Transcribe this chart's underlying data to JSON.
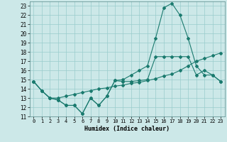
{
  "xlabel": "Humidex (Indice chaleur)",
  "xlim": [
    -0.5,
    23.5
  ],
  "ylim": [
    11,
    23.5
  ],
  "yticks": [
    11,
    12,
    13,
    14,
    15,
    16,
    17,
    18,
    19,
    20,
    21,
    22,
    23
  ],
  "xticks": [
    0,
    1,
    2,
    3,
    4,
    5,
    6,
    7,
    8,
    9,
    10,
    11,
    12,
    13,
    14,
    15,
    16,
    17,
    18,
    19,
    20,
    21,
    22,
    23
  ],
  "bg_color": "#cce8e8",
  "grid_color": "#99cccc",
  "line_color": "#1a7a6e",
  "line1_x": [
    0,
    1,
    2,
    3,
    4,
    5,
    6,
    7,
    8,
    9,
    10,
    11,
    12,
    13,
    14,
    15,
    16,
    17,
    18,
    19,
    20,
    21,
    22,
    23
  ],
  "line1_y": [
    14.8,
    13.8,
    13.0,
    12.8,
    12.2,
    12.2,
    11.3,
    13.0,
    12.2,
    13.2,
    14.9,
    14.8,
    14.8,
    14.9,
    15.0,
    17.5,
    17.5,
    17.5,
    17.5,
    17.5,
    15.5,
    16.0,
    15.5,
    14.8
  ],
  "line2_x": [
    0,
    1,
    2,
    3,
    4,
    5,
    6,
    7,
    8,
    9,
    10,
    11,
    12,
    13,
    14,
    15,
    16,
    17,
    18,
    19,
    20,
    21,
    22,
    23
  ],
  "line2_y": [
    14.8,
    13.8,
    13.0,
    12.8,
    12.2,
    12.2,
    11.3,
    13.0,
    12.2,
    13.2,
    14.9,
    15.0,
    15.5,
    16.0,
    16.5,
    19.5,
    22.8,
    23.3,
    22.0,
    19.5,
    16.5,
    15.5,
    15.5,
    14.8
  ],
  "line3_x": [
    0,
    1,
    2,
    3,
    4,
    5,
    6,
    7,
    8,
    9,
    10,
    11,
    12,
    13,
    14,
    15,
    16,
    17,
    18,
    19,
    20,
    21,
    22,
    23
  ],
  "line3_y": [
    14.8,
    13.8,
    13.0,
    13.0,
    13.2,
    13.4,
    13.6,
    13.8,
    14.0,
    14.1,
    14.3,
    14.4,
    14.6,
    14.7,
    14.9,
    15.1,
    15.4,
    15.6,
    16.0,
    16.5,
    17.0,
    17.3,
    17.6,
    17.9
  ]
}
